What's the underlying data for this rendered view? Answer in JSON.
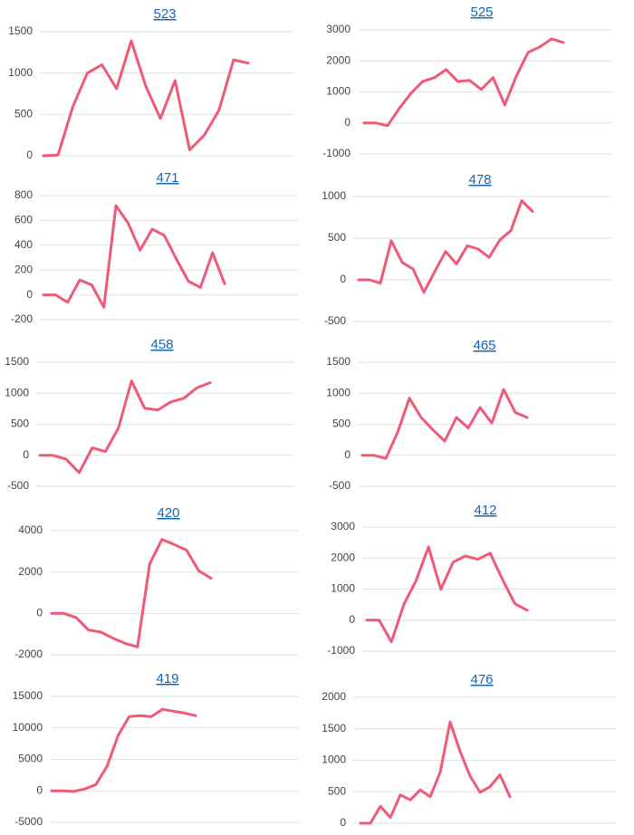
{
  "chart_data": [
    {
      "type": "line",
      "title": "523",
      "color": "#ee5a78",
      "grid": true,
      "ylim": [
        0,
        1500
      ],
      "yticks": [
        0,
        500,
        1000,
        1500
      ],
      "values": [
        0,
        10,
        590,
        1000,
        1100,
        810,
        1390,
        840,
        450,
        910,
        70,
        250,
        550,
        1160,
        1120
      ]
    },
    {
      "type": "line",
      "title": "525",
      "color": "#ee5a78",
      "grid": true,
      "ylim": [
        -1000,
        3000
      ],
      "yticks": [
        -1000,
        0,
        1000,
        2000,
        3000
      ],
      "values": [
        0,
        0,
        -90,
        470,
        960,
        1340,
        1460,
        1720,
        1340,
        1370,
        1080,
        1460,
        580,
        1520,
        2280,
        2450,
        2710,
        2590
      ]
    },
    {
      "type": "line",
      "title": "471",
      "color": "#ee5a78",
      "grid": true,
      "ylim": [
        -200,
        800
      ],
      "yticks": [
        -200,
        0,
        200,
        400,
        600,
        800
      ],
      "values": [
        0,
        0,
        -60,
        120,
        80,
        -100,
        720,
        580,
        360,
        530,
        480,
        290,
        110,
        60,
        340,
        90
      ]
    },
    {
      "type": "line",
      "title": "478",
      "color": "#ee5a78",
      "grid": true,
      "ylim": [
        -500,
        1000
      ],
      "yticks": [
        -500,
        0,
        500,
        1000
      ],
      "values": [
        0,
        0,
        -40,
        470,
        210,
        130,
        -150,
        100,
        340,
        190,
        410,
        370,
        270,
        480,
        590,
        950,
        820
      ]
    },
    {
      "type": "line",
      "title": "458",
      "color": "#ee5a78",
      "grid": true,
      "ylim": [
        -500,
        1500
      ],
      "yticks": [
        -500,
        0,
        500,
        1000,
        1500
      ],
      "values": [
        0,
        0,
        -60,
        -280,
        120,
        60,
        440,
        1200,
        760,
        730,
        860,
        920,
        1090,
        1170
      ]
    },
    {
      "type": "line",
      "title": "465",
      "color": "#ee5a78",
      "grid": true,
      "ylim": [
        -500,
        1500
      ],
      "yticks": [
        -500,
        0,
        500,
        1000,
        1500
      ],
      "values": [
        0,
        0,
        -50,
        370,
        920,
        610,
        410,
        230,
        610,
        440,
        770,
        520,
        1060,
        690,
        610
      ]
    },
    {
      "type": "line",
      "title": "420",
      "color": "#ee5a78",
      "grid": true,
      "ylim": [
        -2000,
        4000
      ],
      "yticks": [
        -2000,
        0,
        2000,
        4000
      ],
      "values": [
        0,
        0,
        -200,
        -800,
        -900,
        -1200,
        -1450,
        -1620,
        2400,
        3580,
        3330,
        3060,
        2060,
        1700
      ]
    },
    {
      "type": "line",
      "title": "412",
      "color": "#ee5a78",
      "grid": true,
      "ylim": [
        -1000,
        3000
      ],
      "yticks": [
        -1000,
        0,
        1000,
        2000,
        3000
      ],
      "values": [
        0,
        0,
        -700,
        500,
        1280,
        2360,
        990,
        1870,
        2070,
        1960,
        2160,
        1310,
        530,
        320
      ]
    },
    {
      "type": "line",
      "title": "419",
      "color": "#ee5a78",
      "grid": true,
      "ylim": [
        -5000,
        15000
      ],
      "yticks": [
        -5000,
        0,
        5000,
        10000,
        15000
      ],
      "values": [
        0,
        0,
        -100,
        300,
        1000,
        3900,
        8800,
        11800,
        11950,
        11800,
        12950,
        12650,
        12350,
        11950
      ]
    },
    {
      "type": "line",
      "title": "476",
      "color": "#ee5a78",
      "grid": true,
      "ylim": [
        0,
        2000
      ],
      "yticks": [
        0,
        500,
        1000,
        1500,
        2000
      ],
      "values": [
        0,
        0,
        270,
        90,
        450,
        370,
        530,
        420,
        810,
        1610,
        1140,
        750,
        490,
        580,
        770,
        420
      ]
    }
  ]
}
